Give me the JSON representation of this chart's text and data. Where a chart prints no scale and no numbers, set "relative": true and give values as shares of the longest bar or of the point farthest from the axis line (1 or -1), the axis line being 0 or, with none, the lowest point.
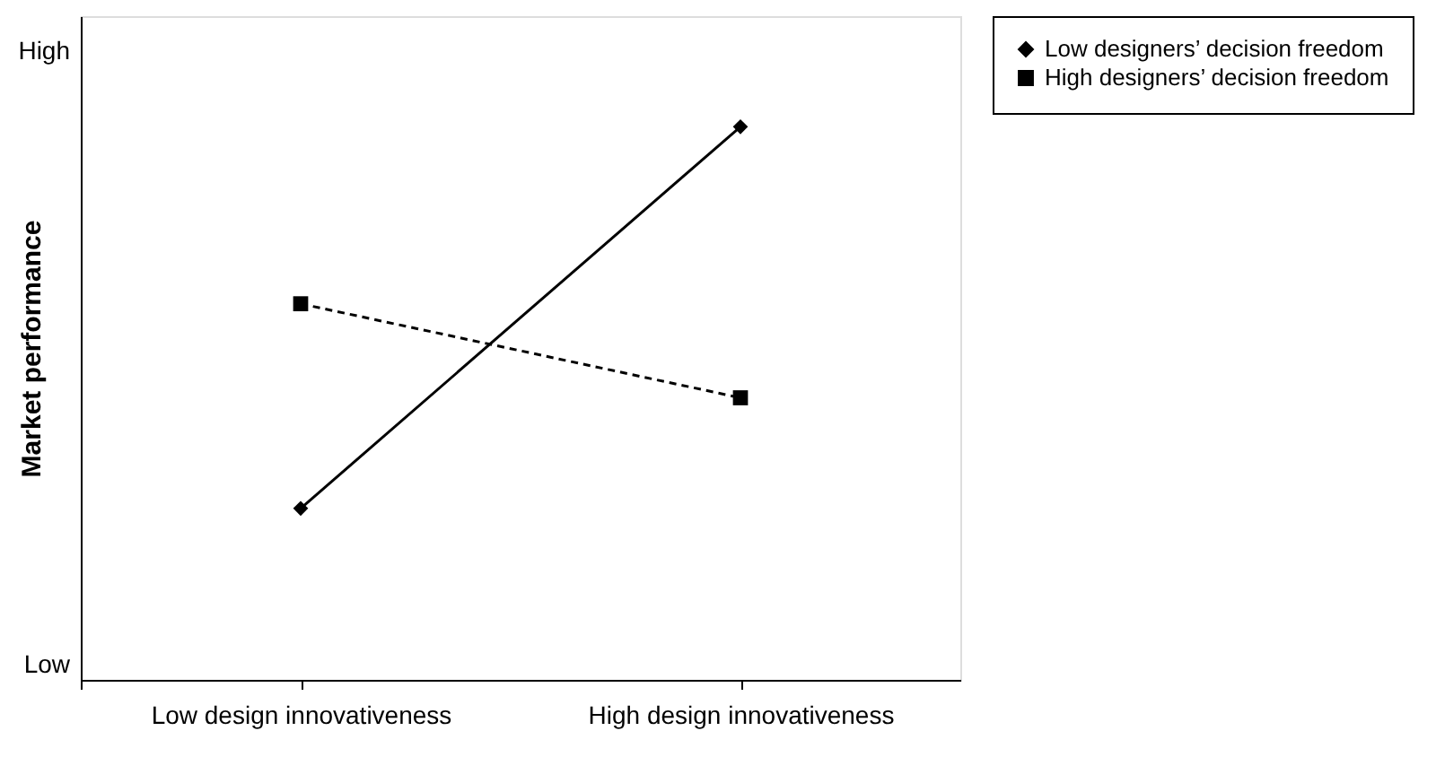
{
  "chart_data": {
    "type": "line",
    "ylabel": "Market performance",
    "categories": [
      "Low design innovativeness",
      "High design innovativeness"
    ],
    "series": [
      {
        "name": "Low designers’ decision freedom",
        "color": "#000000",
        "values": [
          0.31,
          1
        ],
        "marker": "diamond",
        "line_style": "solid"
      },
      {
        "name": "High designers’ decision freedom",
        "color": "#000000",
        "values": [
          0.68,
          0.51
        ],
        "marker": "square",
        "line_style": "dashed"
      }
    ],
    "relative": true,
    "annotations": [
      "High",
      "Low"
    ],
    "grid": false,
    "legend": "right"
  }
}
